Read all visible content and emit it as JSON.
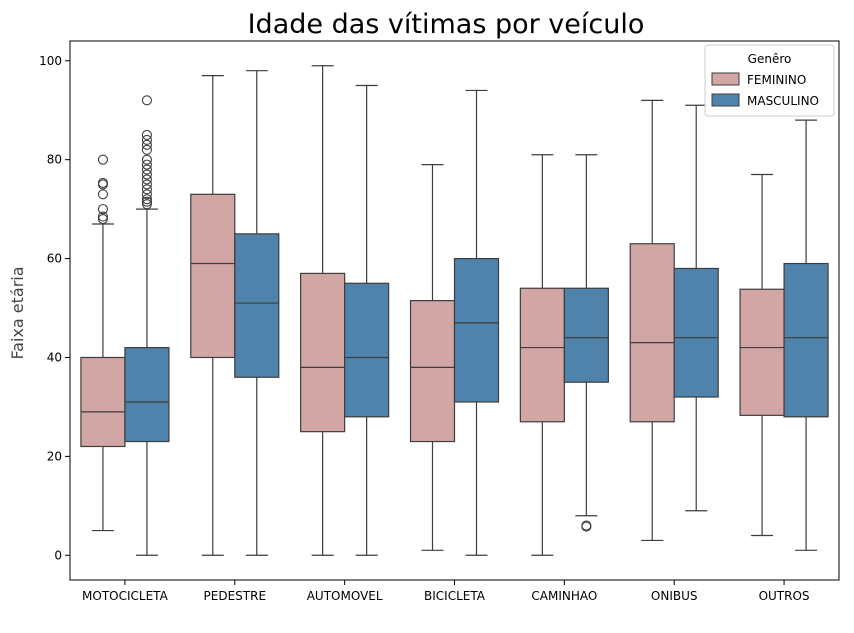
{
  "chart_data": {
    "type": "box",
    "title": "Idade das vítimas por veículo",
    "xlabel": "",
    "ylabel": "Faixa etária",
    "ylim": [
      -5,
      104
    ],
    "yticks": [
      0,
      20,
      40,
      60,
      80,
      100
    ],
    "categories": [
      "MOTOCICLETA",
      "PEDESTRE",
      "AUTOMOVEL",
      "BICICLETA",
      "CAMINHAO",
      "ONIBUS",
      "OUTROS"
    ],
    "legend": {
      "title": "Genêro",
      "position": "top-right"
    },
    "series": [
      {
        "name": "FEMININO",
        "color": "#d3a6a6",
        "boxes": [
          {
            "whislo": 5,
            "q1": 22,
            "med": 29,
            "q3": 40,
            "whishi": 67,
            "fliers": [
              68,
              68.5,
              70,
              73,
              75,
              75.3,
              80
            ]
          },
          {
            "whislo": 0,
            "q1": 40,
            "med": 59,
            "q3": 73,
            "whishi": 97,
            "fliers": []
          },
          {
            "whislo": 0,
            "q1": 25,
            "med": 38,
            "q3": 57,
            "whishi": 99,
            "fliers": []
          },
          {
            "whislo": 1,
            "q1": 23,
            "med": 38,
            "q3": 51.5,
            "whishi": 79,
            "fliers": []
          },
          {
            "whislo": 0,
            "q1": 27,
            "med": 42,
            "q3": 54,
            "whishi": 81,
            "fliers": []
          },
          {
            "whislo": 3,
            "q1": 27,
            "med": 43,
            "q3": 63,
            "whishi": 92,
            "fliers": []
          },
          {
            "whislo": 4,
            "q1": 28.3,
            "med": 42,
            "q3": 53.8,
            "whishi": 77,
            "fliers": []
          }
        ]
      },
      {
        "name": "MASCULINO",
        "color": "#4f83ab",
        "boxes": [
          {
            "whislo": 0,
            "q1": 23,
            "med": 31,
            "q3": 42,
            "whishi": 70,
            "fliers": [
              71,
              71.5,
              72,
              73,
              74,
              75,
              76,
              77,
              78,
              79,
              80,
              82,
              83,
              84,
              85,
              92
            ]
          },
          {
            "whislo": 0,
            "q1": 36,
            "med": 51,
            "q3": 65,
            "whishi": 98,
            "fliers": []
          },
          {
            "whislo": 0,
            "q1": 28,
            "med": 40,
            "q3": 55,
            "whishi": 95,
            "fliers": []
          },
          {
            "whislo": 0,
            "q1": 31,
            "med": 47,
            "q3": 60,
            "whishi": 94,
            "fliers": []
          },
          {
            "whislo": 8,
            "q1": 35,
            "med": 44,
            "q3": 54,
            "whishi": 81,
            "fliers": [
              6,
              5.8
            ]
          },
          {
            "whislo": 9,
            "q1": 32,
            "med": 44,
            "q3": 58,
            "whishi": 91,
            "fliers": []
          },
          {
            "whislo": 1,
            "q1": 28,
            "med": 44,
            "q3": 59,
            "whishi": 88,
            "fliers": []
          }
        ]
      }
    ],
    "grid": false
  }
}
